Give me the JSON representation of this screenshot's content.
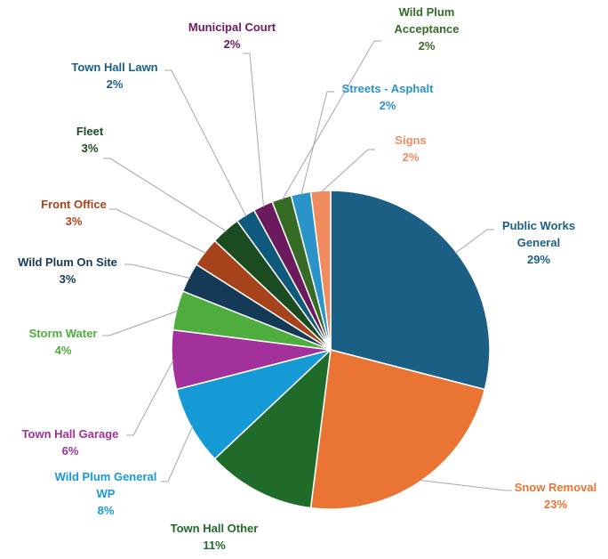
{
  "chart_data": {
    "type": "pie",
    "title": "",
    "categories": [
      "Public Works General",
      "Snow Removal",
      "Town Hall Other",
      "Wild Plum General WP",
      "Town Hall Garage",
      "Storm Water",
      "Wild Plum On Site",
      "Front Office",
      "Fleet",
      "Town Hall Lawn",
      "Municipal Court",
      "Wild Plum Acceptance",
      "Streets - Asphalt",
      "Signs"
    ],
    "values": [
      29,
      23,
      11,
      8,
      6,
      4,
      3,
      3,
      3,
      2,
      2,
      2,
      2,
      2
    ],
    "labels": [
      {
        "name_lines": [
          "Public Works",
          "General"
        ],
        "pct": "29%"
      },
      {
        "name_lines": [
          "Snow Removal"
        ],
        "pct": "23%"
      },
      {
        "name_lines": [
          "Town Hall Other"
        ],
        "pct": "11%"
      },
      {
        "name_lines": [
          "Wild Plum General",
          "WP"
        ],
        "pct": "8%"
      },
      {
        "name_lines": [
          "Town Hall Garage"
        ],
        "pct": "6%"
      },
      {
        "name_lines": [
          "Storm Water"
        ],
        "pct": "4%"
      },
      {
        "name_lines": [
          "Wild Plum On Site"
        ],
        "pct": "3%"
      },
      {
        "name_lines": [
          "Front Office"
        ],
        "pct": "3%"
      },
      {
        "name_lines": [
          "Fleet"
        ],
        "pct": "3%"
      },
      {
        "name_lines": [
          "Town Hall Lawn"
        ],
        "pct": "2%"
      },
      {
        "name_lines": [
          "Municipal Court"
        ],
        "pct": "2%"
      },
      {
        "name_lines": [
          "Wild Plum",
          "Acceptance"
        ],
        "pct": "2%"
      },
      {
        "name_lines": [
          "Streets - Asphalt"
        ],
        "pct": "2%"
      },
      {
        "name_lines": [
          "Signs"
        ],
        "pct": "2%"
      }
    ],
    "colors": [
      "#1b5f85",
      "#ea7433",
      "#1f6b2a",
      "#169ad6",
      "#a2319c",
      "#4ead3c",
      "#153a57",
      "#a6431b",
      "#1b4b20",
      "#0f5a7c",
      "#6b1a5e",
      "#356b24",
      "#2a93c7",
      "#ef8b5e"
    ],
    "label_colors": [
      "#1b5f85",
      "#ea7433",
      "#1f6b2a",
      "#169ad6",
      "#a2319c",
      "#4ead3c",
      "#153a57",
      "#a6431b",
      "#1b4b20",
      "#1b5f85",
      "#6b1a5e",
      "#356b24",
      "#2a93c7",
      "#ef8b5e"
    ],
    "start_angle_deg": 0,
    "direction": "clockwise",
    "legend": "none",
    "data_labels": "outside with leader lines"
  }
}
